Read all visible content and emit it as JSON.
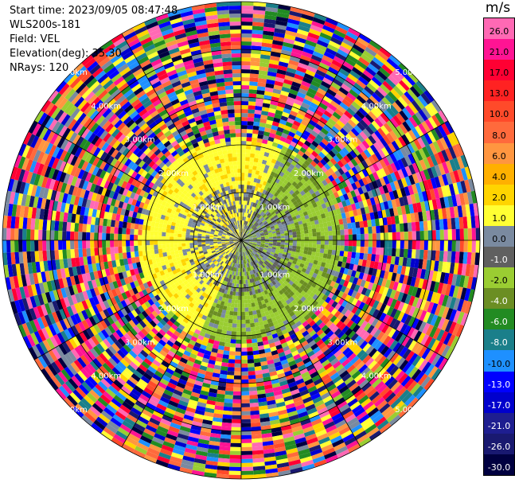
{
  "header": {
    "start_time": "Start time: 2023/09/05 08:47:48",
    "instrument": "WLS200s-181",
    "field": "Field: VEL",
    "elevation": "Elevation(deg): 35.30",
    "nrays": "NRays: 120"
  },
  "colorbar": {
    "unit": "m/s",
    "ticks": [
      "26.0",
      "21.0",
      "17.0",
      "13.0",
      "10.0",
      "8.0",
      "6.0",
      "4.0",
      "2.0",
      "1.0",
      "0.0",
      "-1.0",
      "-2.0",
      "-4.0",
      "-6.0",
      "-8.0",
      "-10.0",
      "-13.0",
      "-17.0",
      "-21.0",
      "-26.0",
      "-30.0"
    ],
    "colors": [
      "#ff69b4",
      "#ff1493",
      "#ff0033",
      "#ff2222",
      "#ff4a2a",
      "#ff6a3c",
      "#ff9640",
      "#ffb000",
      "#ffd400",
      "#ffff33",
      "#7a8aa0",
      "#606060",
      "#9acd32",
      "#6b8e23",
      "#228b22",
      "#1a7f8a",
      "#1e90ff",
      "#0000ff",
      "#0000cd",
      "#1e1e90",
      "#191970",
      "#000040"
    ]
  },
  "chart_data": {
    "type": "heatmap",
    "projection": "polar (PPI)",
    "field": "VEL",
    "units": "m/s",
    "nrays": 120,
    "range_ring_labels": [
      "1.00km",
      "2.00km",
      "3.00km",
      "4.00km",
      "5.00km"
    ],
    "value_range": [
      -30,
      26
    ],
    "near_field_pattern": {
      "max_range_km": 2.2,
      "positive_sector_deg": [
        205,
        25
      ],
      "positive_mean_ms": 2.0,
      "negative_sector_deg": [
        25,
        205
      ],
      "negative_mean_ms": -2.0
    },
    "far_field": "noise"
  }
}
